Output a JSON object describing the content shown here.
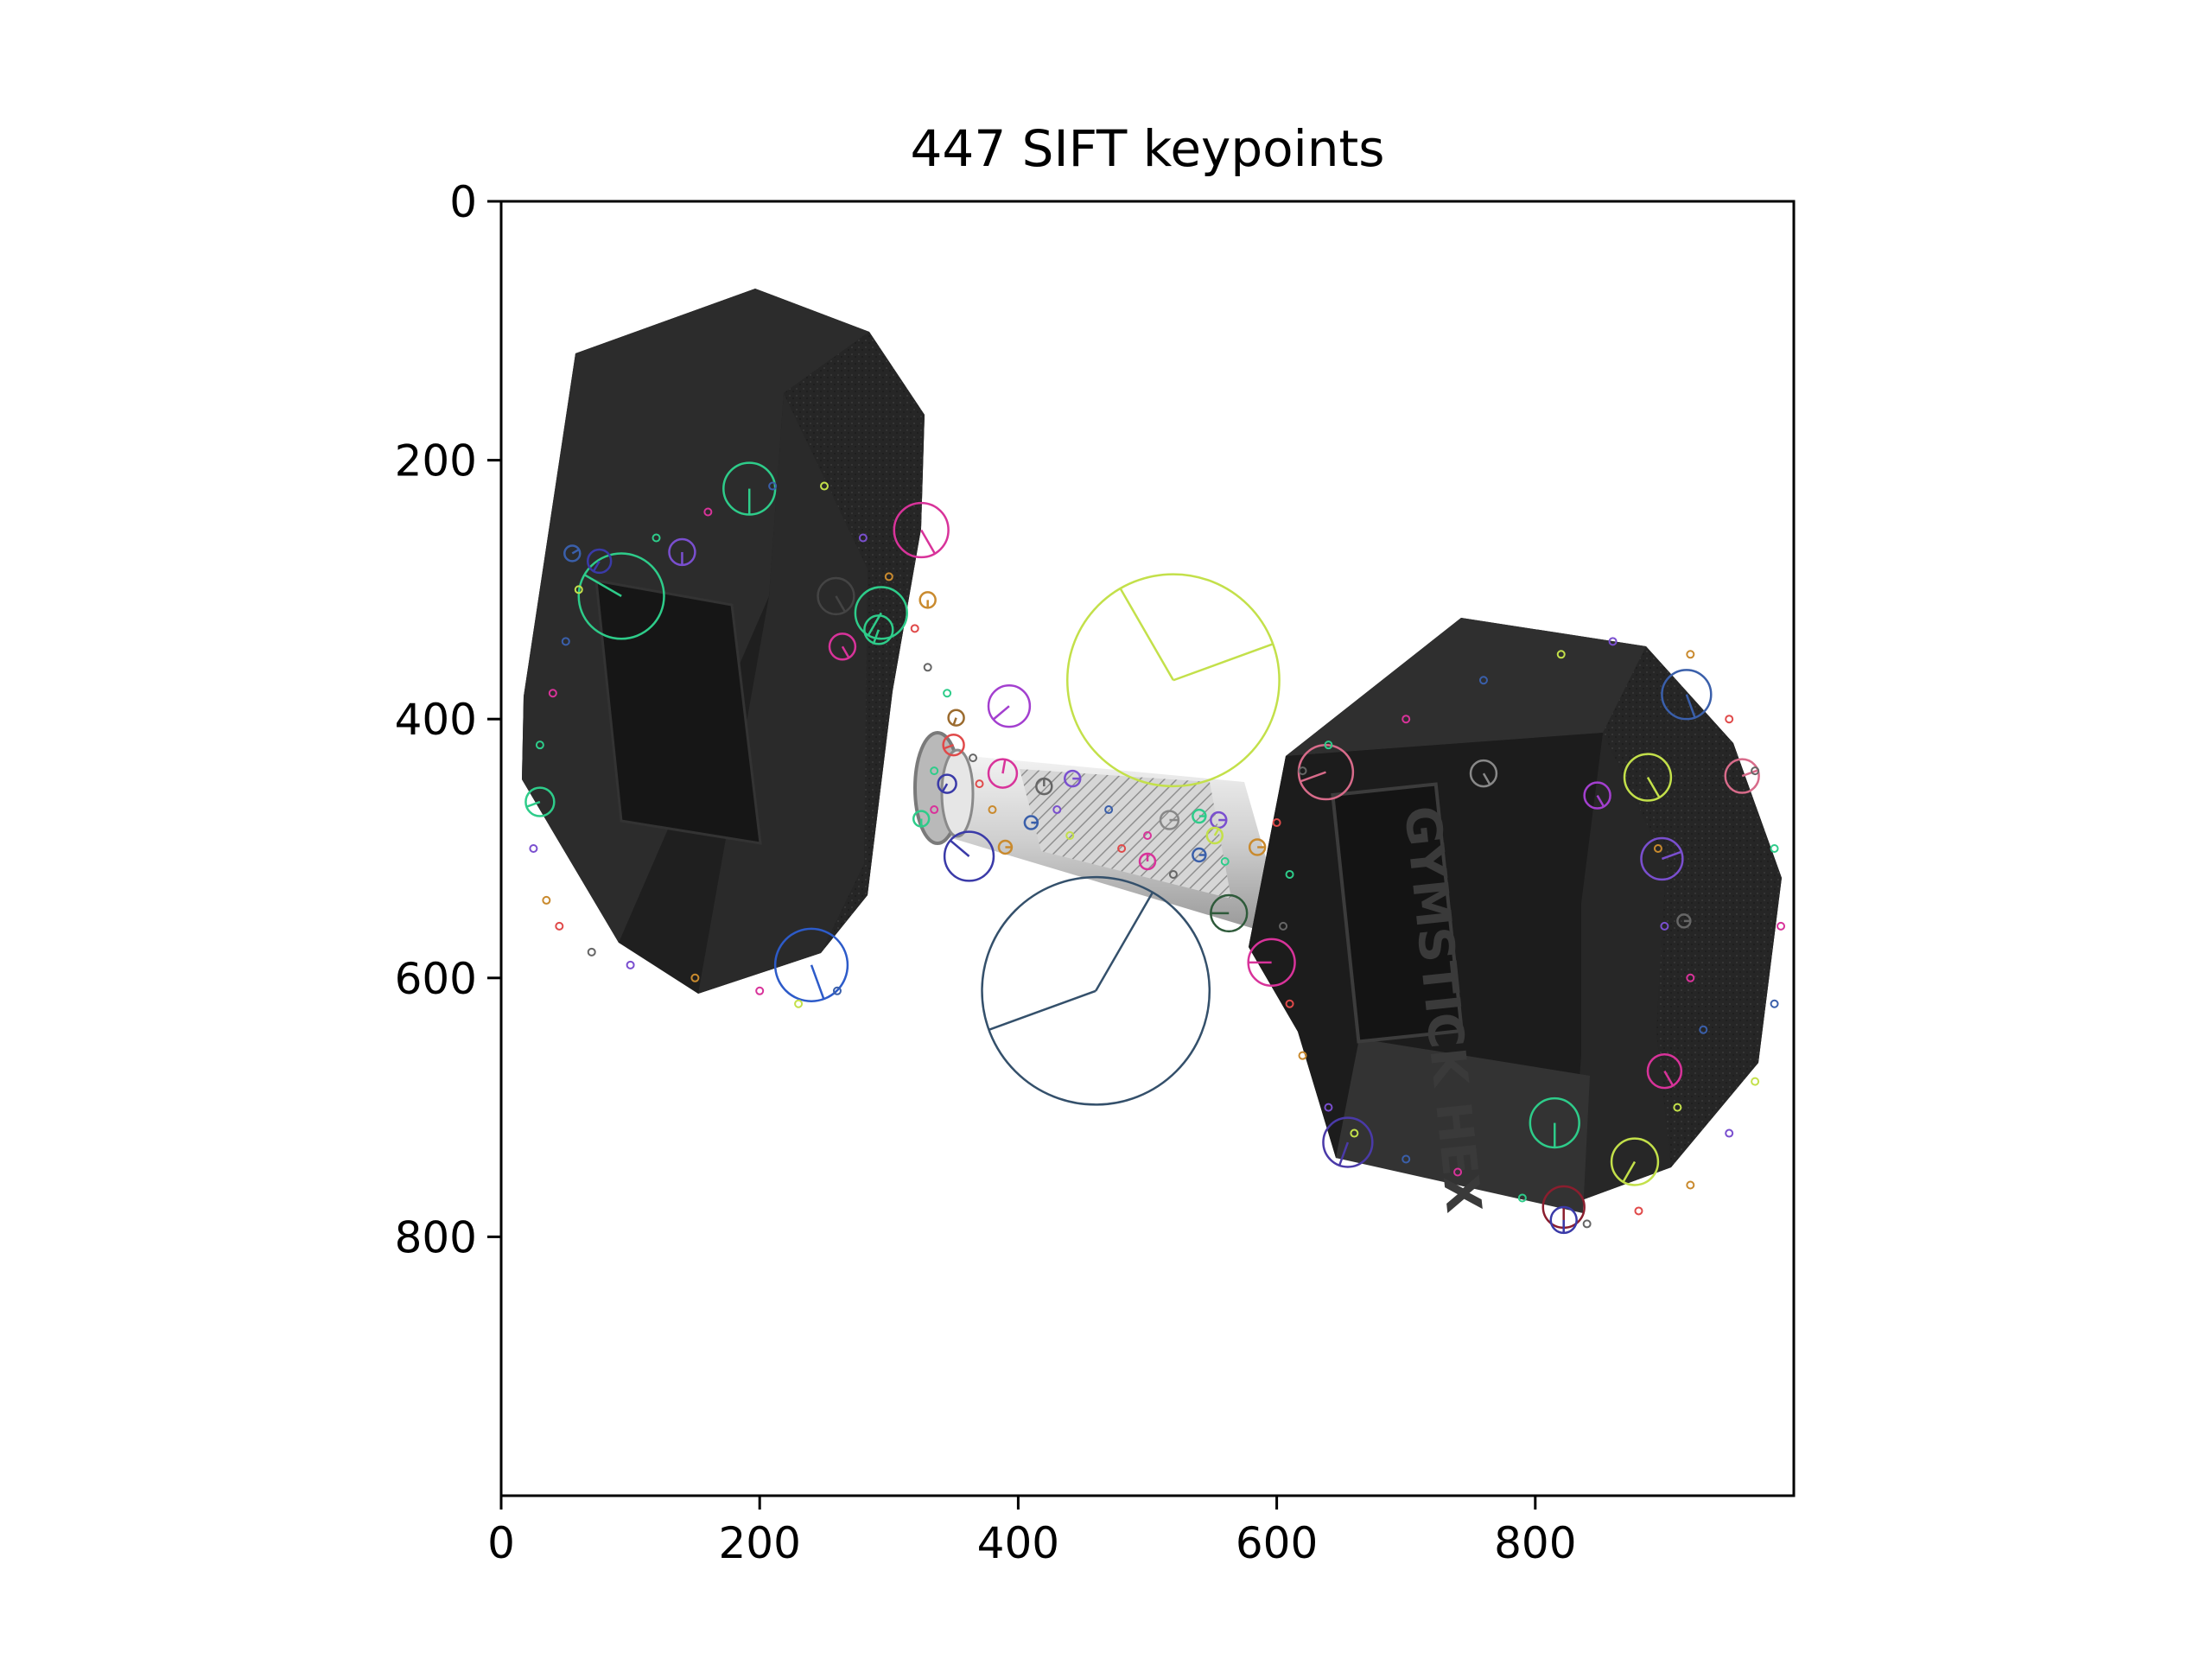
{
  "figure": {
    "title": "447 SIFT keypoints",
    "image_extent": {
      "x": [
        0,
        1000
      ],
      "y": [
        0,
        1000
      ]
    },
    "x_ticks": [
      {
        "value": 0,
        "label": "0"
      },
      {
        "value": 200,
        "label": "200"
      },
      {
        "value": 400,
        "label": "400"
      },
      {
        "value": 600,
        "label": "600"
      },
      {
        "value": 800,
        "label": "800"
      }
    ],
    "y_ticks": [
      {
        "value": 0,
        "label": "0"
      },
      {
        "value": 200,
        "label": "200"
      },
      {
        "value": 400,
        "label": "400"
      },
      {
        "value": 600,
        "label": "600"
      },
      {
        "value": 800,
        "label": "800"
      }
    ],
    "image_subject": "black hex dumbbell with chrome knurled handle",
    "plate_text": "GYMSTICK HEX",
    "keypoints": [
      {
        "x": 520,
        "y": 370,
        "r": 82,
        "color": "#c3e04a",
        "angles": [
          120,
          20
        ]
      },
      {
        "x": 460,
        "y": 610,
        "r": 88,
        "color": "#34506b",
        "angles": [
          200,
          60
        ]
      },
      {
        "x": 93,
        "y": 305,
        "r": 33,
        "color": "#2ecc8a",
        "angles": [
          150
        ]
      },
      {
        "x": 240,
        "y": 590,
        "r": 28,
        "color": "#2d5bc9",
        "angles": [
          290
        ]
      },
      {
        "x": 192,
        "y": 222,
        "r": 20,
        "color": "#2ecc8a",
        "angles": [
          270
        ]
      },
      {
        "x": 325,
        "y": 254,
        "r": 21,
        "color": "#d8339a",
        "angles": [
          300
        ]
      },
      {
        "x": 294,
        "y": 318,
        "r": 20,
        "color": "#2ecc8a",
        "angles": [
          240
        ]
      },
      {
        "x": 259,
        "y": 305,
        "r": 14,
        "color": "#444444",
        "angles": [
          300
        ]
      },
      {
        "x": 292,
        "y": 331,
        "r": 11,
        "color": "#2ecc8a",
        "angles": [
          250
        ]
      },
      {
        "x": 140,
        "y": 271,
        "r": 10,
        "color": "#7a4fcf",
        "angles": [
          270
        ]
      },
      {
        "x": 76,
        "y": 278,
        "r": 9,
        "color": "#3a3aa8",
        "angles": [
          240
        ]
      },
      {
        "x": 55,
        "y": 272,
        "r": 6,
        "color": "#3a5faa",
        "angles": [
          30
        ]
      },
      {
        "x": 264,
        "y": 344,
        "r": 10,
        "color": "#d8339a",
        "angles": [
          300
        ]
      },
      {
        "x": 330,
        "y": 308,
        "r": 6,
        "color": "#c98a2e",
        "angles": [
          270
        ]
      },
      {
        "x": 393,
        "y": 390,
        "r": 16,
        "color": "#a33fcf",
        "angles": [
          220
        ]
      },
      {
        "x": 352,
        "y": 399,
        "r": 6,
        "color": "#9b6b2e",
        "angles": [
          250
        ]
      },
      {
        "x": 350,
        "y": 420,
        "r": 8,
        "color": "#e04a4a",
        "angles": [
          200
        ]
      },
      {
        "x": 388,
        "y": 442,
        "r": 11,
        "color": "#d8339a",
        "angles": [
          80
        ]
      },
      {
        "x": 345,
        "y": 450,
        "r": 7,
        "color": "#3a3aa8",
        "angles": [
          240
        ]
      },
      {
        "x": 442,
        "y": 446,
        "r": 6,
        "color": "#7a4fcf",
        "angles": [
          0
        ]
      },
      {
        "x": 420,
        "y": 452,
        "r": 6,
        "color": "#666666",
        "angles": [
          90
        ]
      },
      {
        "x": 325,
        "y": 477,
        "r": 6,
        "color": "#2ecc8a",
        "angles": [
          270
        ]
      },
      {
        "x": 410,
        "y": 480,
        "r": 5,
        "color": "#3a5faa",
        "angles": [
          0
        ]
      },
      {
        "x": 362,
        "y": 506,
        "r": 19,
        "color": "#3a3aa8",
        "angles": [
          140
        ]
      },
      {
        "x": 390,
        "y": 499,
        "r": 5,
        "color": "#c98a2e",
        "angles": [
          0
        ]
      },
      {
        "x": 30,
        "y": 464,
        "r": 11,
        "color": "#2ecc8a",
        "angles": [
          200
        ]
      },
      {
        "x": 517,
        "y": 478,
        "r": 7,
        "color": "#888888",
        "angles": [
          0
        ]
      },
      {
        "x": 555,
        "y": 478,
        "r": 6,
        "color": "#7a4fcf",
        "angles": [
          0
        ]
      },
      {
        "x": 540,
        "y": 475,
        "r": 5,
        "color": "#2ecc8a",
        "angles": [
          0
        ]
      },
      {
        "x": 552,
        "y": 490,
        "r": 6,
        "color": "#c3e04a",
        "angles": [
          60
        ]
      },
      {
        "x": 585,
        "y": 499,
        "r": 6,
        "color": "#c98a2e",
        "angles": [
          0
        ]
      },
      {
        "x": 500,
        "y": 510,
        "r": 6,
        "color": "#d8339a",
        "angles": [
          90
        ]
      },
      {
        "x": 540,
        "y": 505,
        "r": 5,
        "color": "#3a5faa",
        "angles": [
          0
        ]
      },
      {
        "x": 563,
        "y": 550,
        "r": 14,
        "color": "#2e5a3a",
        "angles": [
          180
        ]
      },
      {
        "x": 638,
        "y": 441,
        "r": 21,
        "color": "#d86b8a",
        "angles": [
          200
        ]
      },
      {
        "x": 596,
        "y": 588,
        "r": 18,
        "color": "#d8339a",
        "angles": [
          180
        ]
      },
      {
        "x": 760,
        "y": 442,
        "r": 10,
        "color": "#888888",
        "angles": [
          300
        ]
      },
      {
        "x": 848,
        "y": 459,
        "r": 10,
        "color": "#a33fcf",
        "angles": [
          300
        ]
      },
      {
        "x": 887,
        "y": 445,
        "r": 18,
        "color": "#c3e04a",
        "angles": [
          300
        ]
      },
      {
        "x": 917,
        "y": 381,
        "r": 19,
        "color": "#3a5faa",
        "angles": [
          290
        ]
      },
      {
        "x": 960,
        "y": 444,
        "r": 13,
        "color": "#d86b8a",
        "angles": [
          20
        ]
      },
      {
        "x": 898,
        "y": 508,
        "r": 16,
        "color": "#7a4fcf",
        "angles": [
          20
        ]
      },
      {
        "x": 915,
        "y": 556,
        "r": 5,
        "color": "#666666",
        "angles": [
          0
        ]
      },
      {
        "x": 900,
        "y": 672,
        "r": 13,
        "color": "#d8339a",
        "angles": [
          300
        ]
      },
      {
        "x": 815,
        "y": 712,
        "r": 19,
        "color": "#2ecc8a",
        "angles": [
          270
        ]
      },
      {
        "x": 877,
        "y": 742,
        "r": 18,
        "color": "#c3e04a",
        "angles": [
          240
        ]
      },
      {
        "x": 822,
        "y": 777,
        "r": 16,
        "color": "#8b1e2e",
        "angles": [
          270
        ]
      },
      {
        "x": 822,
        "y": 787,
        "r": 10,
        "color": "#3a3aa8",
        "angles": [
          270
        ]
      },
      {
        "x": 655,
        "y": 727,
        "r": 19,
        "color": "#4a3aa8",
        "angles": [
          250
        ]
      }
    ]
  }
}
